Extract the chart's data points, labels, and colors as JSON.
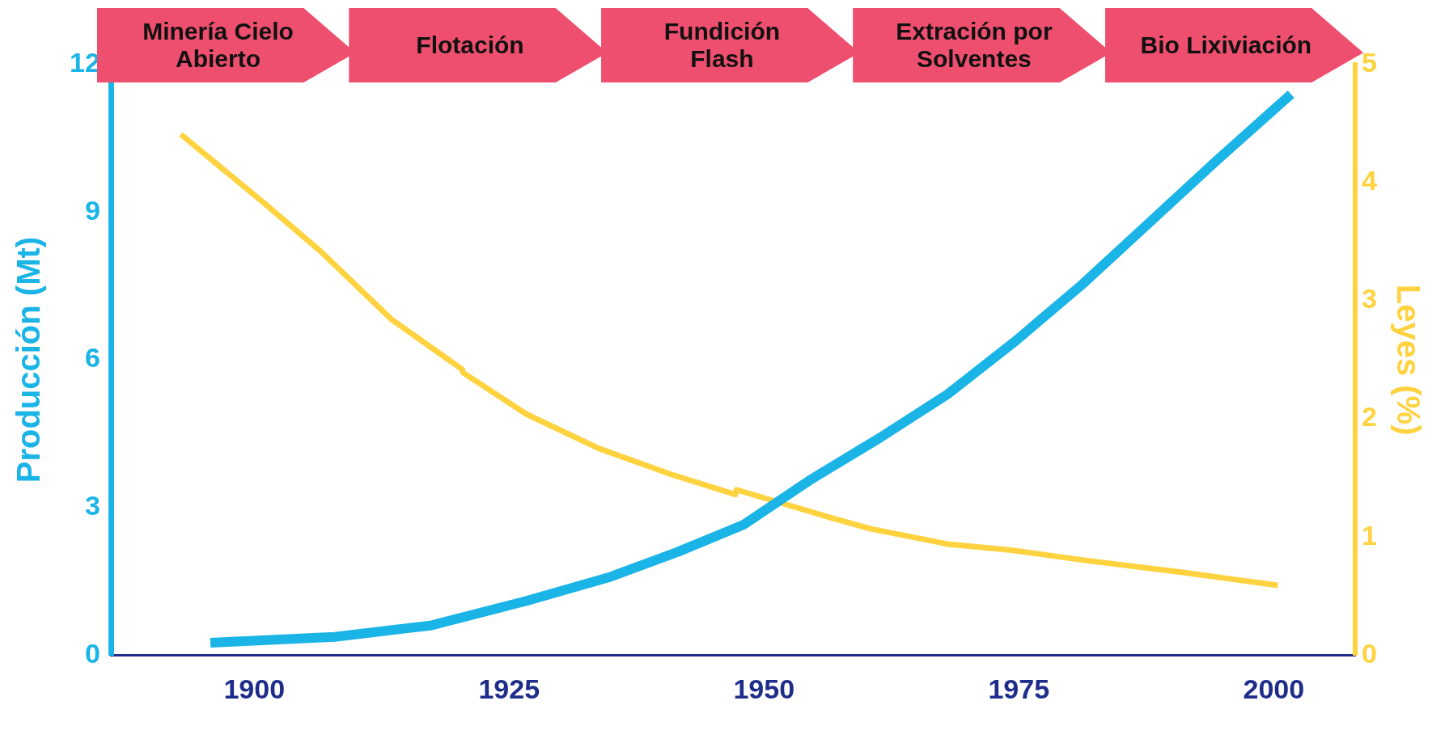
{
  "chart_data": {
    "type": "line",
    "xlabel": null,
    "ylabel": "Producción (Mt)",
    "y2label": "Leyes (%)",
    "annotations": [
      "Minería Cielo Abierto",
      "Flotación",
      "Fundición Flash",
      "Extración por Solventes",
      "Bio Lixiviación"
    ],
    "xlim": [
      1886,
      2008
    ],
    "xticks": [
      1900,
      1925,
      1950,
      1975,
      2000
    ],
    "ylim": [
      0,
      12
    ],
    "yticks": [
      0,
      3,
      6,
      9,
      12
    ],
    "y2lim": [
      0,
      5
    ],
    "y2ticks": [
      0,
      1,
      2,
      3,
      4,
      5
    ],
    "grid": false,
    "legend": false,
    "marker": "none",
    "line_style": "solid",
    "series": [
      {
        "color": "#1ab4e6",
        "x": [
          1895.7,
          1907.9,
          1917.3,
          1926.7,
          1934.8,
          1941.6,
          1948,
          1954.7,
          1961.4,
          1968,
          1974.6,
          1981.2,
          1987.8,
          1994.4,
          2001.7
        ],
        "values": [
          0.25,
          0.37,
          0.6,
          1.1,
          1.58,
          2.1,
          2.65,
          3.58,
          4.42,
          5.3,
          6.37,
          7.53,
          8.79,
          10.05,
          11.4
        ]
      },
      {
        "color": "#ffd23f",
        "axis": "y2",
        "x": [
          1892.8,
          1900.8,
          1906.5,
          1913.5,
          1920.4,
          1920.5,
          1926.7,
          1933.8,
          1940.9,
          1947.2,
          1947.3,
          1956.7,
          1960.4,
          1968,
          1974.1,
          1981.7,
          1991.1,
          2000.4
        ],
        "values": [
          4.41,
          3.84,
          3.42,
          2.84,
          2.42,
          2.39,
          2.04,
          1.75,
          1.53,
          1.36,
          1.4,
          1.16,
          1.07,
          0.94,
          0.89,
          0.8,
          0.7,
          0.59
        ]
      }
    ]
  }
}
